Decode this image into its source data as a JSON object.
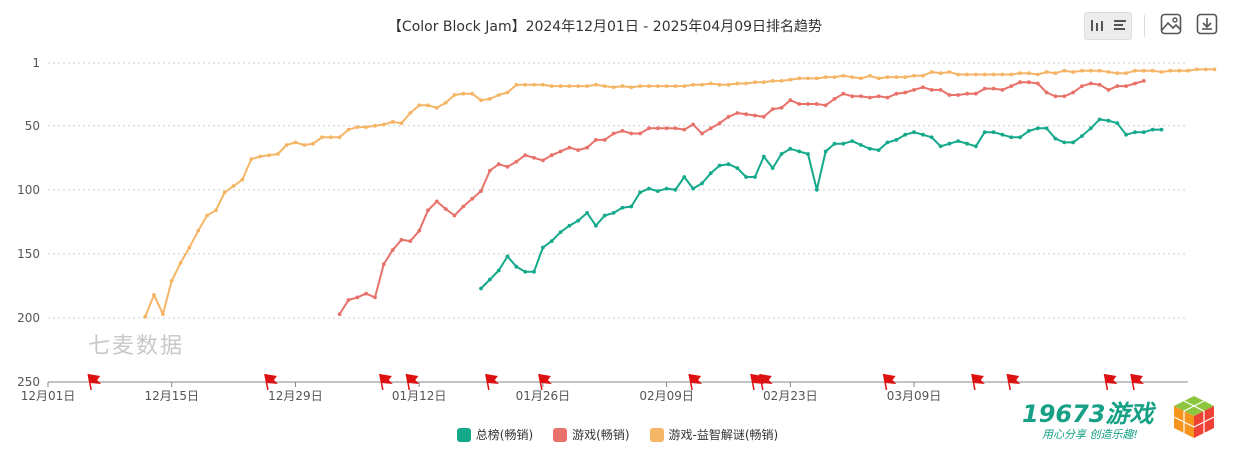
{
  "header": {
    "title": "【Color Block Jam】2024年12月01日 - 2025年04月09日排名趋势"
  },
  "toolbar": {
    "icons": [
      "bar-chart-icon",
      "list-icon",
      "save-image-icon",
      "download-icon"
    ]
  },
  "watermark": "七麦数据",
  "logo": {
    "main": "19673游戏",
    "slogan": "用心分享 创造乐趣!"
  },
  "colors": {
    "overall": "#14a98b",
    "game": "#e8716a",
    "puzzle": "#f5b566",
    "grid": "#cccccc",
    "flag": "#dd1111"
  },
  "chart_data": {
    "type": "line",
    "y_inverted": true,
    "ylim": [
      1,
      250
    ],
    "y_ticks": [
      "1",
      "50",
      "100",
      "150",
      "200",
      "250"
    ],
    "y_tick_values": [
      1,
      50,
      100,
      150,
      200,
      250
    ],
    "x_range": [
      "2024-12-01",
      "2025-04-09"
    ],
    "x_ticks": [
      {
        "label": "12月01日",
        "date": "2024-12-01"
      },
      {
        "label": "12月15日",
        "date": "2024-12-15"
      },
      {
        "label": "12月29日",
        "date": "2024-12-29"
      },
      {
        "label": "01月12日",
        "date": "2025-01-12"
      },
      {
        "label": "01月26日",
        "date": "2025-01-26"
      },
      {
        "label": "02月09日",
        "date": "2025-02-09"
      },
      {
        "label": "02月23日",
        "date": "2025-02-23"
      },
      {
        "label": "03月09日",
        "date": "2025-03-09"
      }
    ],
    "flag_dates": [
      "2024-12-06",
      "2024-12-26",
      "2025-01-08",
      "2025-01-11",
      "2025-01-20",
      "2025-01-26",
      "2025-02-12",
      "2025-02-19",
      "2025-02-20",
      "2025-03-06",
      "2025-03-16",
      "2025-03-20",
      "2025-03-31",
      "2025-04-03"
    ],
    "legend": [
      "总榜(畅销)",
      "游戏(畅销)",
      "游戏-益智解谜(畅销)"
    ],
    "series": [
      {
        "name": "总榜(畅销)",
        "start_date": "2025-01-19",
        "values": [
          177,
          170,
          163,
          152,
          160,
          164,
          164,
          145,
          140,
          133,
          128,
          124,
          118,
          128,
          120,
          118,
          114,
          113,
          102,
          99,
          101,
          99,
          100,
          90,
          99,
          95,
          87,
          81,
          80,
          83,
          90,
          90,
          74,
          83,
          72,
          68,
          70,
          72,
          100,
          70,
          64,
          64,
          62,
          65,
          68,
          69,
          63,
          61,
          57,
          55,
          57,
          59,
          66,
          64,
          62,
          64,
          66,
          55,
          55,
          57,
          59,
          59,
          54,
          52,
          52,
          60,
          63,
          63,
          58,
          52,
          45,
          46,
          48,
          57,
          55,
          55,
          53,
          53
        ]
      },
      {
        "name": "游戏(畅销)",
        "start_date": "2025-01-03",
        "values": [
          197,
          186,
          184,
          181,
          184,
          158,
          147,
          139,
          140,
          132,
          116,
          109,
          115,
          120,
          113,
          107,
          101,
          85,
          80,
          82,
          78,
          73,
          75,
          77,
          73,
          70,
          67,
          69,
          67,
          61,
          61,
          56,
          54,
          56,
          56,
          52,
          52,
          52,
          52,
          53,
          49,
          56,
          52,
          48,
          43,
          40,
          41,
          42,
          43,
          37,
          36,
          30,
          33,
          33,
          33,
          34,
          29,
          25,
          27,
          27,
          28,
          27,
          28,
          25,
          24,
          22,
          20,
          22,
          22,
          26,
          26,
          25,
          25,
          21,
          21,
          22,
          19,
          16,
          16,
          17,
          24,
          27,
          27,
          24,
          19,
          17,
          18,
          22,
          19,
          19,
          17,
          15
        ]
      },
      {
        "name": "游戏-益智解谜(畅销)",
        "start_date": "2024-12-12",
        "values": [
          199,
          182,
          197,
          171,
          157,
          145,
          132,
          120,
          116,
          102,
          97,
          92,
          76,
          74,
          73,
          72,
          65,
          63,
          65,
          64,
          59,
          59,
          59,
          53,
          51,
          51,
          50,
          49,
          47,
          48,
          40,
          34,
          34,
          36,
          32,
          26,
          25,
          25,
          30,
          29,
          26,
          24,
          18,
          18,
          18,
          18,
          19,
          19,
          19,
          19,
          19,
          18,
          19,
          20,
          19,
          20,
          19,
          19,
          19,
          19,
          19,
          19,
          18,
          18,
          17,
          18,
          18,
          17,
          17,
          16,
          16,
          15,
          15,
          14,
          13,
          13,
          13,
          12,
          12,
          11,
          12,
          13,
          11,
          13,
          12,
          12,
          12,
          11,
          11,
          8,
          9,
          8,
          10,
          10,
          10,
          10,
          10,
          10,
          10,
          9,
          9,
          10,
          8,
          9,
          7,
          8,
          7,
          7,
          7,
          8,
          9,
          9,
          7,
          7,
          7,
          8,
          7,
          7,
          7,
          6,
          6,
          6
        ]
      }
    ]
  },
  "plot_range": {
    "x_start": "2024-12-01",
    "x_end": "2025-04-09"
  }
}
